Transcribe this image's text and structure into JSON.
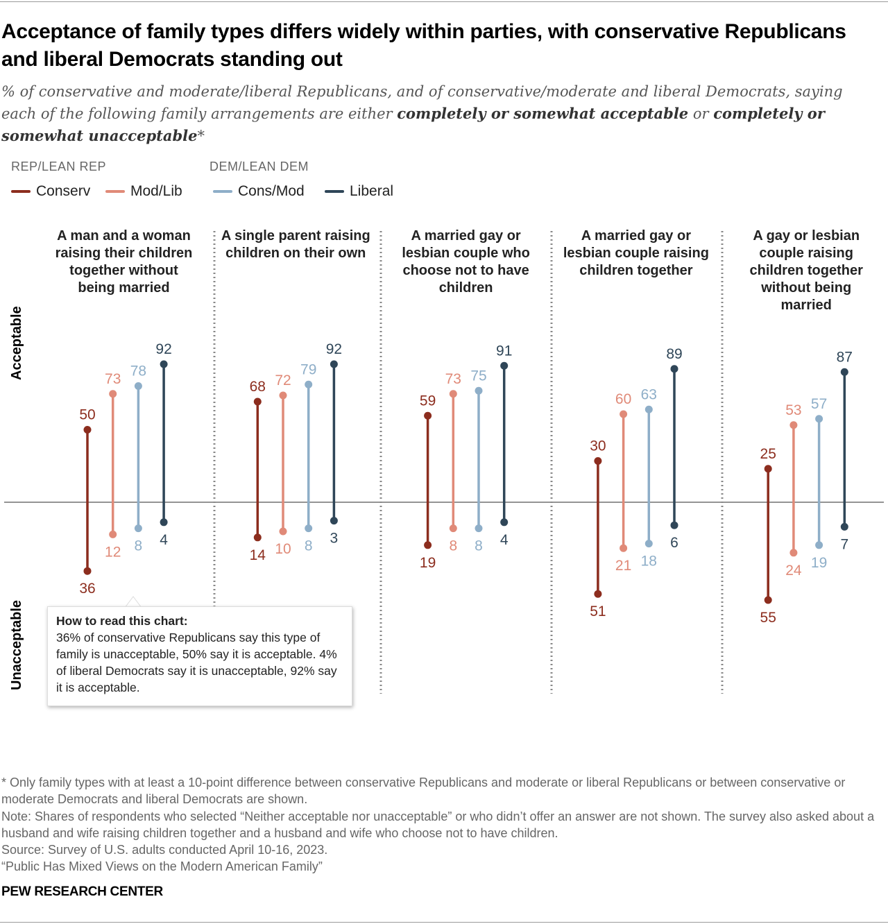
{
  "title": "Acceptance of family types differs widely within parties, with conservative Republicans and liberal Democrats standing out",
  "subtitle": {
    "part1": "% of conservative and moderate/liberal Republicans, and of conservative/moderate and liberal Democrats, saying each of the following family arrangements are either ",
    "bold1": "completely or somewhat acceptable",
    "part2": " or ",
    "bold2": "completely or somewhat unacceptable",
    "part3": "*"
  },
  "legend": {
    "group_rep": "REP/LEAN REP",
    "group_dem": "DEM/LEAN DEM"
  },
  "axis": {
    "upper": "Acceptable",
    "lower": "Unacceptable"
  },
  "howto": {
    "title": "How to read this chart:",
    "text": "36% of conservative Republicans say this type of family is unacceptable, 50% say it is acceptable. 4% of liberal Democrats say it is unacceptable, 92% say it is acceptable."
  },
  "notes": [
    "* Only family types with at least a 10-point difference between conservative Republicans and moderate or liberal Republicans or between conservative or moderate Democrats and liberal Democrats are shown.",
    "Note: Shares of respondents who selected “Neither acceptable nor unacceptable” or who didn’t offer an answer are not shown. The survey also asked about a husband and wife raising children together and a husband and wife who choose not to have children.",
    "Source: Survey of U.S. adults conducted April 10-16, 2023.",
    "“Public Has Mixed Views on the Modern American Family”"
  ],
  "brand": "PEW RESEARCH CENTER",
  "chart_data": {
    "type": "diverging-dot-range",
    "categories": [
      "A man and a woman raising their children together without being married",
      "A single parent raising children on their own",
      "A married gay or lesbian couple who choose not to have children",
      "A married gay or lesbian couple raising children together",
      "A gay or lesbian couple raising children together without being married"
    ],
    "series": [
      {
        "name": "Conserv",
        "color": "#8c2d1e",
        "acceptable": [
          50,
          68,
          59,
          30,
          25
        ],
        "unacceptable": [
          36,
          14,
          19,
          51,
          55
        ]
      },
      {
        "name": "Mod/Lib",
        "color": "#e08a78",
        "acceptable": [
          73,
          72,
          73,
          60,
          53
        ],
        "unacceptable": [
          12,
          10,
          8,
          21,
          24
        ]
      },
      {
        "name": "Cons/Mod",
        "color": "#8eaec8",
        "acceptable": [
          78,
          79,
          75,
          63,
          57
        ],
        "unacceptable": [
          8,
          8,
          8,
          18,
          19
        ]
      },
      {
        "name": "Liberal",
        "color": "#2f4658",
        "acceptable": [
          92,
          92,
          91,
          89,
          87
        ],
        "unacceptable": [
          4,
          3,
          4,
          6,
          7
        ]
      }
    ]
  }
}
